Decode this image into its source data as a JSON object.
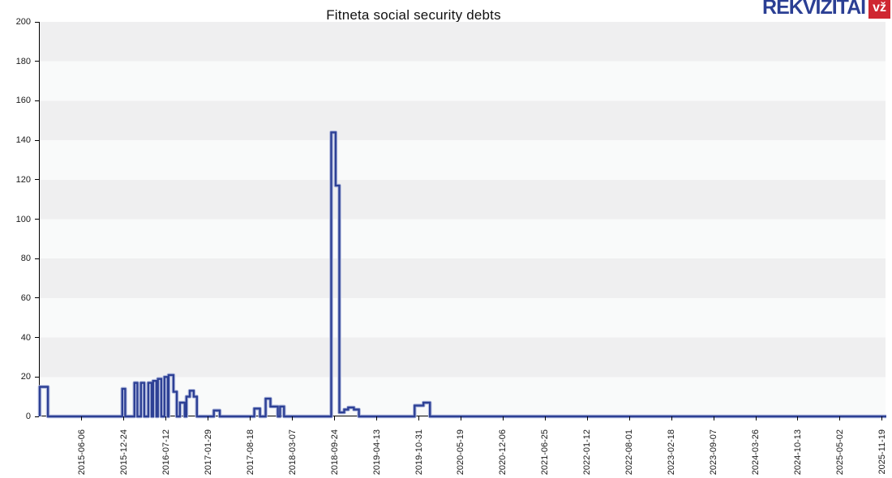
{
  "page": {
    "title": "Fitneta social security debts"
  },
  "logo": {
    "text": "REKVIZITAI",
    "badge": "vž",
    "text_color": "#2b3f94",
    "badge_color": "#cf2731"
  },
  "colors": {
    "line": "#2d4095",
    "line_halo": "#b3bcdf",
    "band_dark": "#efeff0",
    "band_light": "#f9fafa",
    "axis": "#000000",
    "background": "#ffffff"
  },
  "chart_data": {
    "type": "line",
    "subtype": "step",
    "title": "Fitneta social security debts",
    "xlabel": "",
    "ylabel": "",
    "ylim": [
      0,
      200
    ],
    "grid": "horizontal-bands",
    "legend": "none",
    "y_axis": {
      "min": 0,
      "max": 200,
      "tick_step": 20,
      "tick_labels": [
        "0",
        "20",
        "40",
        "60",
        "80",
        "100",
        "120",
        "140",
        "160",
        "180",
        "200"
      ]
    },
    "x_axis": {
      "start": "2014-11-13",
      "end": "2025-12-05",
      "tick_labels": [
        "2015-06-06",
        "2015-12-24",
        "2016-07-12",
        "2017-01-29",
        "2017-08-18",
        "2018-03-07",
        "2018-09-24",
        "2019-04-13",
        "2019-10-31",
        "2020-05-19",
        "2020-12-06",
        "2021-06-25",
        "2022-01-12",
        "2022-08-01",
        "2023-02-18",
        "2023-09-07",
        "2024-03-26",
        "2024-10-13",
        "2025-05-02",
        "2025-11-19"
      ]
    },
    "series": [
      {
        "name": "social security debt",
        "color": "#2d4095",
        "baseline": 0,
        "segments": [
          {
            "from": "2014-11-13",
            "to": "2014-12-22",
            "value": 15
          },
          {
            "from": "2015-12-12",
            "to": "2015-12-26",
            "value": 14
          },
          {
            "from": "2016-02-08",
            "to": "2016-02-22",
            "value": 17
          },
          {
            "from": "2016-03-10",
            "to": "2016-03-26",
            "value": 17
          },
          {
            "from": "2016-04-14",
            "to": "2016-04-30",
            "value": 17
          },
          {
            "from": "2016-05-07",
            "to": "2016-05-23",
            "value": 18
          },
          {
            "from": "2016-05-30",
            "to": "2016-06-15",
            "value": 19
          },
          {
            "from": "2016-06-30",
            "to": "2016-07-16",
            "value": 20
          },
          {
            "from": "2016-07-20",
            "to": "2016-08-12",
            "value": 21
          },
          {
            "from": "2016-08-12",
            "to": "2016-08-28",
            "value": 12.5
          },
          {
            "from": "2016-09-12",
            "to": "2016-10-05",
            "value": 7
          },
          {
            "from": "2016-10-13",
            "to": "2016-10-29",
            "value": 10
          },
          {
            "from": "2016-10-29",
            "to": "2016-11-17",
            "value": 13
          },
          {
            "from": "2016-11-17",
            "to": "2016-12-02",
            "value": 10
          },
          {
            "from": "2017-02-21",
            "to": "2017-03-21",
            "value": 3
          },
          {
            "from": "2017-09-02",
            "to": "2017-09-29",
            "value": 4
          },
          {
            "from": "2017-10-26",
            "to": "2017-11-18",
            "value": 9
          },
          {
            "from": "2017-11-18",
            "to": "2017-12-23",
            "value": 5
          },
          {
            "from": "2018-01-03",
            "to": "2018-01-22",
            "value": 5
          },
          {
            "from": "2018-09-04",
            "to": "2018-09-25",
            "value": 144
          },
          {
            "from": "2018-09-25",
            "to": "2018-10-13",
            "value": 117
          },
          {
            "from": "2018-10-13",
            "to": "2018-11-05",
            "value": 2
          },
          {
            "from": "2018-11-05",
            "to": "2018-11-24",
            "value": 3.5
          },
          {
            "from": "2018-11-24",
            "to": "2018-12-21",
            "value": 4.5
          },
          {
            "from": "2018-12-21",
            "to": "2019-01-14",
            "value": 3.5
          },
          {
            "from": "2019-10-07",
            "to": "2019-11-18",
            "value": 5.5
          },
          {
            "from": "2019-11-18",
            "to": "2019-12-19",
            "value": 7
          }
        ]
      }
    ]
  }
}
